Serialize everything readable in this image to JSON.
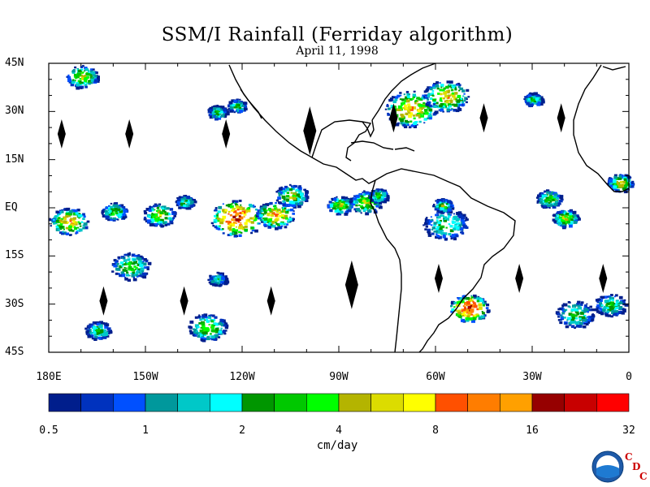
{
  "title": "SSM/I Rainfall (Ferriday algorithm)",
  "date": "April 11, 1998",
  "map": {
    "lon_range": [
      -180,
      0
    ],
    "lat_range": [
      -45,
      45
    ],
    "lat_labels": [
      {
        "lat": 45,
        "text": "45N"
      },
      {
        "lat": 30,
        "text": "30N"
      },
      {
        "lat": 15,
        "text": "15N"
      },
      {
        "lat": 0,
        "text": "EQ"
      },
      {
        "lat": -15,
        "text": "15S"
      },
      {
        "lat": -30,
        "text": "30S"
      },
      {
        "lat": -45,
        "text": "45S"
      }
    ],
    "lon_labels": [
      {
        "lon": -180,
        "text": "180E"
      },
      {
        "lon": -150,
        "text": "150W"
      },
      {
        "lon": -120,
        "text": "120W"
      },
      {
        "lon": -90,
        "text": "90W"
      },
      {
        "lon": -60,
        "text": "60W"
      },
      {
        "lon": -30,
        "text": "30W"
      },
      {
        "lon": 0,
        "text": "0"
      }
    ],
    "swath_gaps": [
      {
        "lon": -176,
        "lat": 23
      },
      {
        "lon": -155,
        "lat": 23
      },
      {
        "lon": -125,
        "lat": 23
      },
      {
        "lon": -99,
        "lat": 24
      },
      {
        "lon": -73,
        "lat": 28
      },
      {
        "lon": -45,
        "lat": 28
      },
      {
        "lon": -21,
        "lat": 28
      },
      {
        "lon": -163,
        "lat": -29
      },
      {
        "lon": -138,
        "lat": -29
      },
      {
        "lon": -111,
        "lat": -29
      },
      {
        "lon": -86,
        "lat": -24
      },
      {
        "lon": -59,
        "lat": -22
      },
      {
        "lon": -34,
        "lat": -22
      },
      {
        "lon": -8,
        "lat": -22
      }
    ],
    "rain_areas": [
      {
        "lon": -170,
        "lat": 41,
        "peak": 6,
        "r": 5
      },
      {
        "lon": -122,
        "lat": 32,
        "peak": 3,
        "r": 3
      },
      {
        "lon": -128,
        "lat": 30,
        "peak": 3,
        "r": 3
      },
      {
        "lon": -68,
        "lat": 31,
        "peak": 10,
        "r": 8
      },
      {
        "lon": -57,
        "lat": 35,
        "peak": 8,
        "r": 7
      },
      {
        "lon": -30,
        "lat": 34,
        "peak": 3,
        "r": 3
      },
      {
        "lon": -3,
        "lat": 8,
        "peak": 6,
        "r": 4
      },
      {
        "lon": -174,
        "lat": -4,
        "peak": 9,
        "r": 6
      },
      {
        "lon": -160,
        "lat": -1,
        "peak": 4,
        "r": 4
      },
      {
        "lon": -146,
        "lat": -2,
        "peak": 6,
        "r": 5
      },
      {
        "lon": -138,
        "lat": 2,
        "peak": 3,
        "r": 3
      },
      {
        "lon": -122,
        "lat": -3,
        "peak": 20,
        "r": 8
      },
      {
        "lon": -110,
        "lat": -2,
        "peak": 10,
        "r": 6
      },
      {
        "lon": -105,
        "lat": 4,
        "peak": 5,
        "r": 5
      },
      {
        "lon": -90,
        "lat": 1,
        "peak": 6,
        "r": 4
      },
      {
        "lon": -82,
        "lat": 2,
        "peak": 6,
        "r": 5
      },
      {
        "lon": -78,
        "lat": 4,
        "peak": 4,
        "r": 3
      },
      {
        "lon": -57,
        "lat": -5,
        "peak": 3,
        "r": 7
      },
      {
        "lon": -25,
        "lat": 3,
        "peak": 4,
        "r": 4
      },
      {
        "lon": -20,
        "lat": -3,
        "peak": 6,
        "r": 4
      },
      {
        "lon": -155,
        "lat": -18,
        "peak": 4,
        "r": 6
      },
      {
        "lon": -128,
        "lat": -22,
        "peak": 2,
        "r": 3
      },
      {
        "lon": -131,
        "lat": -37,
        "peak": 5,
        "r": 6
      },
      {
        "lon": -50,
        "lat": -31,
        "peak": 20,
        "r": 6
      },
      {
        "lon": -17,
        "lat": -33,
        "peak": 3,
        "r": 6
      },
      {
        "lon": -6,
        "lat": -30,
        "peak": 3,
        "r": 5
      },
      {
        "lon": -165,
        "lat": -38,
        "peak": 3,
        "r": 4
      },
      {
        "lon": -58,
        "lat": 1,
        "peak": 4,
        "r": 3
      }
    ]
  },
  "colorbar": {
    "colors": [
      "#001e8c",
      "#0032be",
      "#0050ff",
      "#00989c",
      "#00c8c8",
      "#00ffff",
      "#009600",
      "#00c800",
      "#00ff00",
      "#b4b400",
      "#dcdc00",
      "#ffff00",
      "#ff5000",
      "#ff7d00",
      "#ffa000",
      "#960000",
      "#c80000",
      "#ff0000"
    ],
    "labels": [
      "0.5",
      "1",
      "2",
      "4",
      "8",
      "16",
      "32"
    ],
    "units": "cm/day"
  },
  "logos": {
    "noaa": "NOAA",
    "cdc": [
      "C",
      "D",
      "C"
    ]
  }
}
